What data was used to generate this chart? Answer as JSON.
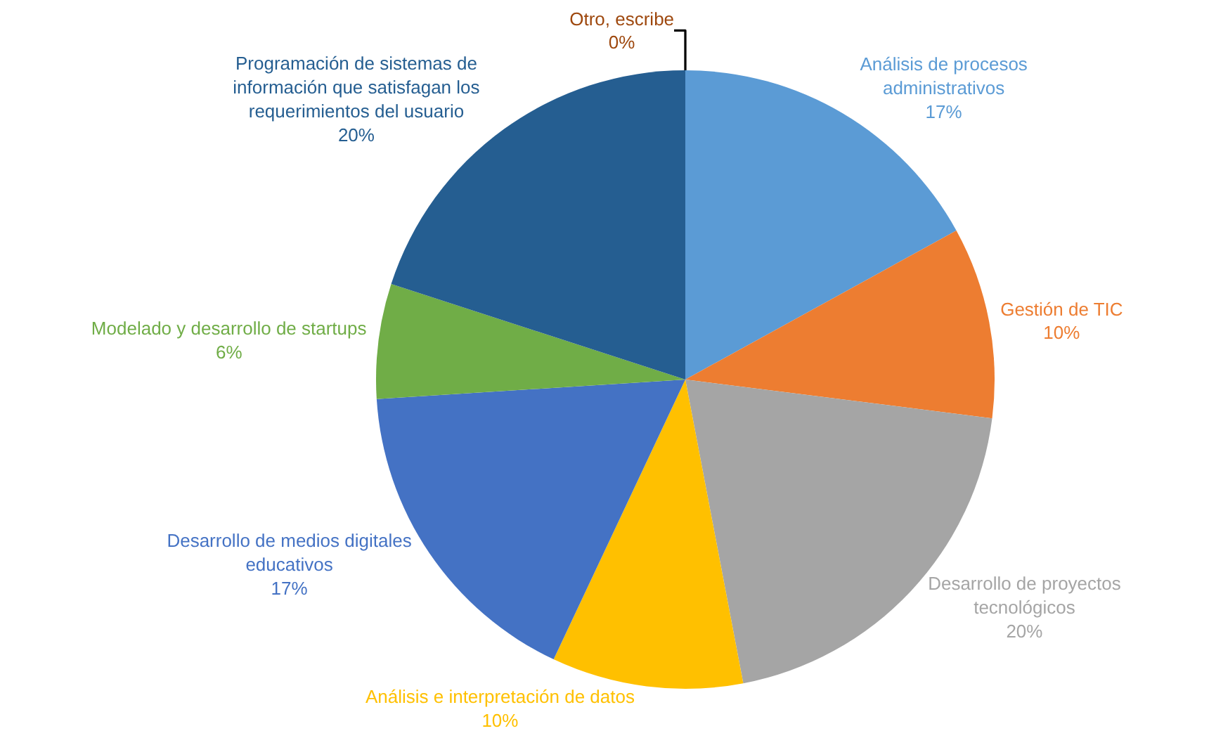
{
  "chart_data": {
    "type": "pie",
    "categories": [
      "Análisis de procesos administrativos",
      "Gestión de TIC",
      "Desarrollo de proyectos tecnológicos",
      "Análisis e interpretación de datos",
      "Desarrollo de medios digitales educativos",
      "Modelado y desarrollo de startups",
      "Programación de sistemas de información que satisfagan los requerimientos del usuario",
      "Otro, escribe"
    ],
    "values": [
      17,
      10,
      20,
      10,
      17,
      6,
      20,
      0
    ],
    "value_labels": [
      "17%",
      "10%",
      "20%",
      "10%",
      "17%",
      "6%",
      "20%",
      "0%"
    ],
    "colors": [
      "#5b9bd5",
      "#ed7d31",
      "#a5a5a5",
      "#ffc000",
      "#4472c4",
      "#70ad47",
      "#255e91",
      "#9e480e"
    ],
    "legend": false
  }
}
